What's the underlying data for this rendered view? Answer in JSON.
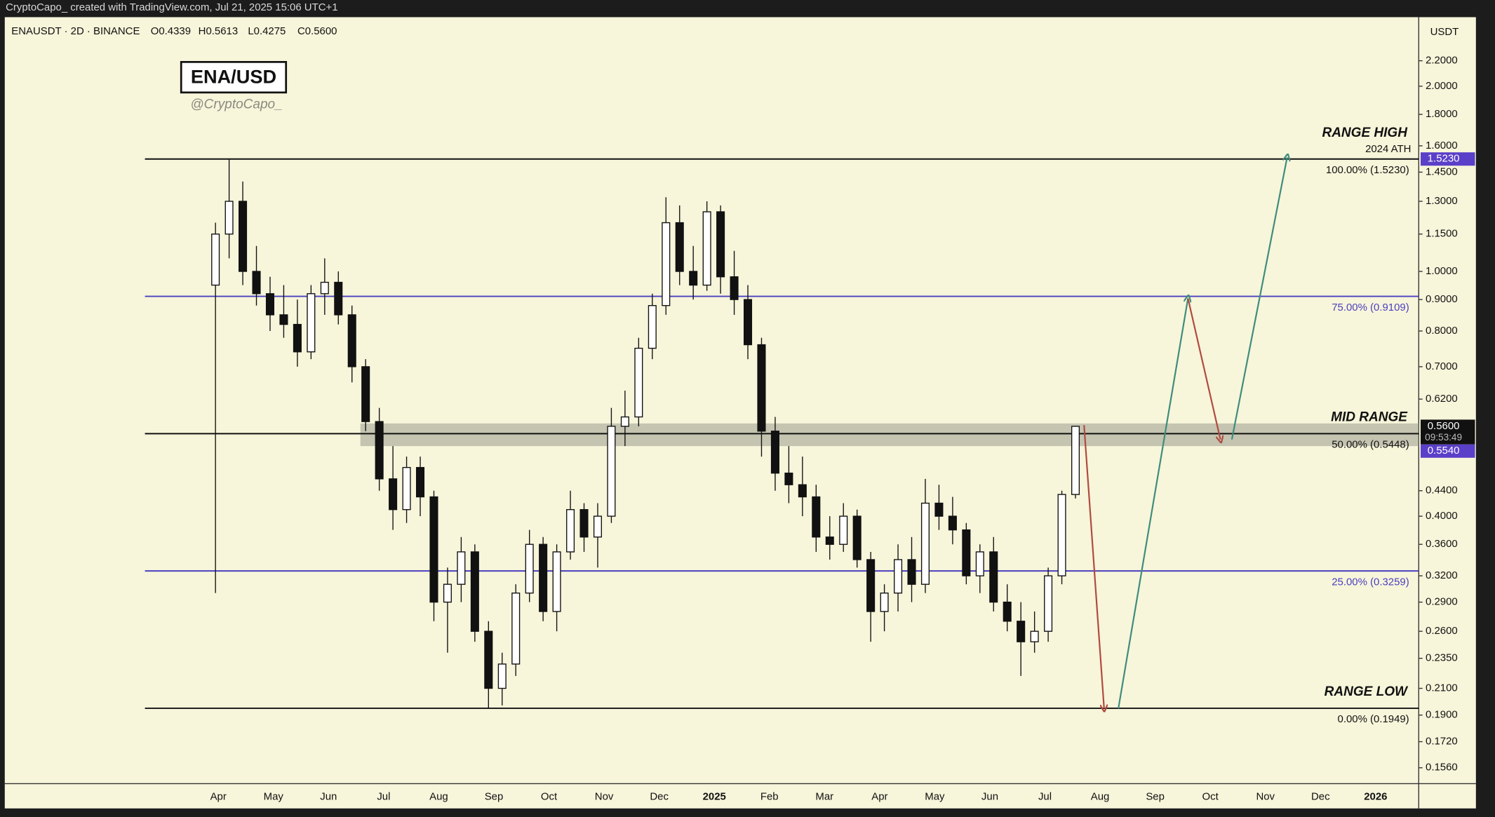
{
  "header": "CryptoCapo_  created with TradingView.com, Jul 21, 2025 15:06 UTC+1",
  "chart_data": {
    "type": "candlestick",
    "symbol": "ENAUSDT · 2D · BINANCE",
    "ohlc_labels": [
      "O0.4339",
      "H0.5613",
      "L0.4275",
      "C0.5600"
    ],
    "title": "ENA/USD",
    "subtitle": "@CryptoCapo_",
    "y_axis_label": "USDT",
    "log_scale": true,
    "ylim": [
      0.147,
      2.59
    ],
    "yticks": [
      {
        "value": 2.2,
        "label": "2.2000"
      },
      {
        "value": 2.0,
        "label": "2.0000"
      },
      {
        "value": 1.8,
        "label": "1.8000"
      },
      {
        "value": 1.6,
        "label": "1.6000"
      },
      {
        "value": 1.45,
        "label": "1.4500"
      },
      {
        "value": 1.3,
        "label": "1.3000"
      },
      {
        "value": 1.15,
        "label": "1.1500"
      },
      {
        "value": 1.0,
        "label": "1.0000"
      },
      {
        "value": 0.9,
        "label": "0.9000"
      },
      {
        "value": 0.8,
        "label": "0.8000"
      },
      {
        "value": 0.7,
        "label": "0.7000"
      },
      {
        "value": 0.62,
        "label": "0.6200"
      },
      {
        "value": 0.44,
        "label": "0.4400"
      },
      {
        "value": 0.4,
        "label": "0.4000"
      },
      {
        "value": 0.36,
        "label": "0.3600"
      },
      {
        "value": 0.32,
        "label": "0.3200"
      },
      {
        "value": 0.29,
        "label": "0.2900"
      },
      {
        "value": 0.26,
        "label": "0.2600"
      },
      {
        "value": 0.235,
        "label": "0.2350"
      },
      {
        "value": 0.21,
        "label": "0.2100"
      },
      {
        "value": 0.19,
        "label": "0.1900"
      },
      {
        "value": 0.172,
        "label": "0.1720"
      },
      {
        "value": 0.156,
        "label": "0.1560"
      }
    ],
    "x_labels": [
      "Apr",
      "May",
      "Jun",
      "Jul",
      "Aug",
      "Sep",
      "Oct",
      "Nov",
      "Dec",
      "2025",
      "Feb",
      "Mar",
      "Apr",
      "May",
      "Jun",
      "Jul",
      "Aug",
      "Sep",
      "Oct",
      "Nov",
      "Dec",
      "2026"
    ],
    "up_color": "#ffffff",
    "down_color": "#111111",
    "candles": {
      "open": [
        0.95,
        1.15,
        1.3,
        1.0,
        0.92,
        0.85,
        0.82,
        0.74,
        0.92,
        0.96,
        0.85,
        0.7,
        0.57,
        0.46,
        0.41,
        0.48,
        0.43,
        0.29,
        0.31,
        0.35,
        0.26,
        0.21,
        0.23,
        0.3,
        0.36,
        0.28,
        0.35,
        0.41,
        0.37,
        0.4,
        0.56,
        0.58,
        0.75,
        0.88,
        1.2,
        1.0,
        0.95,
        1.25,
        0.98,
        0.9,
        0.76,
        0.55,
        0.47,
        0.45,
        0.43,
        0.37,
        0.36,
        0.4,
        0.34,
        0.28,
        0.3,
        0.34,
        0.31,
        0.42,
        0.4,
        0.38,
        0.32,
        0.35,
        0.29,
        0.27,
        0.25,
        0.26,
        0.32,
        0.4339
      ],
      "high": [
        1.2,
        1.52,
        1.4,
        1.1,
        0.98,
        0.95,
        0.9,
        0.95,
        1.05,
        1.0,
        0.88,
        0.72,
        0.6,
        0.52,
        0.5,
        0.5,
        0.44,
        0.33,
        0.37,
        0.36,
        0.27,
        0.24,
        0.31,
        0.38,
        0.37,
        0.36,
        0.44,
        0.42,
        0.42,
        0.6,
        0.64,
        0.78,
        0.92,
        1.32,
        1.28,
        1.1,
        1.3,
        1.28,
        1.08,
        0.95,
        0.78,
        0.58,
        0.52,
        0.5,
        0.45,
        0.4,
        0.42,
        0.41,
        0.35,
        0.31,
        0.36,
        0.37,
        0.46,
        0.45,
        0.43,
        0.39,
        0.36,
        0.37,
        0.31,
        0.29,
        0.28,
        0.33,
        0.44,
        0.5613
      ],
      "low": [
        0.3,
        1.05,
        0.95,
        0.88,
        0.8,
        0.78,
        0.7,
        0.72,
        0.85,
        0.82,
        0.66,
        0.55,
        0.44,
        0.38,
        0.39,
        0.4,
        0.27,
        0.24,
        0.29,
        0.25,
        0.195,
        0.197,
        0.22,
        0.29,
        0.27,
        0.26,
        0.34,
        0.35,
        0.33,
        0.39,
        0.52,
        0.56,
        0.72,
        0.85,
        0.95,
        0.9,
        0.93,
        0.92,
        0.85,
        0.72,
        0.5,
        0.44,
        0.42,
        0.4,
        0.35,
        0.34,
        0.35,
        0.33,
        0.25,
        0.26,
        0.28,
        0.29,
        0.3,
        0.38,
        0.36,
        0.31,
        0.3,
        0.28,
        0.26,
        0.22,
        0.24,
        0.25,
        0.31,
        0.4275
      ],
      "close": [
        1.15,
        1.3,
        1.0,
        0.92,
        0.85,
        0.82,
        0.74,
        0.92,
        0.96,
        0.85,
        0.7,
        0.57,
        0.46,
        0.41,
        0.48,
        0.43,
        0.29,
        0.31,
        0.35,
        0.26,
        0.21,
        0.23,
        0.3,
        0.36,
        0.28,
        0.35,
        0.41,
        0.37,
        0.4,
        0.56,
        0.58,
        0.75,
        0.88,
        1.2,
        1.0,
        0.95,
        1.25,
        0.98,
        0.9,
        0.76,
        0.55,
        0.47,
        0.45,
        0.43,
        0.37,
        0.36,
        0.4,
        0.34,
        0.28,
        0.3,
        0.34,
        0.31,
        0.42,
        0.4,
        0.38,
        0.32,
        0.35,
        0.29,
        0.27,
        0.25,
        0.26,
        0.32,
        0.4339,
        0.56
      ]
    },
    "levels": [
      {
        "value": 1.523,
        "label": "100.00% (1.5230)",
        "title": "RANGE HIGH",
        "note": "2024 ATH",
        "color": "#111111"
      },
      {
        "value": 0.9109,
        "label": "75.00% (0.9109)",
        "color": "#4b3fc0"
      },
      {
        "value": 0.5448,
        "label": "50.00% (0.5448)",
        "title": "MID RANGE",
        "color": "#111111"
      },
      {
        "value": 0.3259,
        "label": "25.00% (0.3259)",
        "color": "#4b3fc0"
      },
      {
        "value": 0.1949,
        "label": "0.00% (0.1949)",
        "title": "RANGE LOW",
        "color": "#111111"
      }
    ],
    "mid_zone": {
      "low": 0.52,
      "high": 0.566
    },
    "price_badges": [
      {
        "value": 1.523,
        "label": "1.5230",
        "color": "#5a3fc9"
      },
      {
        "value": 0.56,
        "label": "0.5600",
        "countdown": "09:53:49",
        "color": "#111111"
      },
      {
        "value": 0.554,
        "label": "0.5540",
        "color": "#5a3fc9"
      }
    ]
  }
}
